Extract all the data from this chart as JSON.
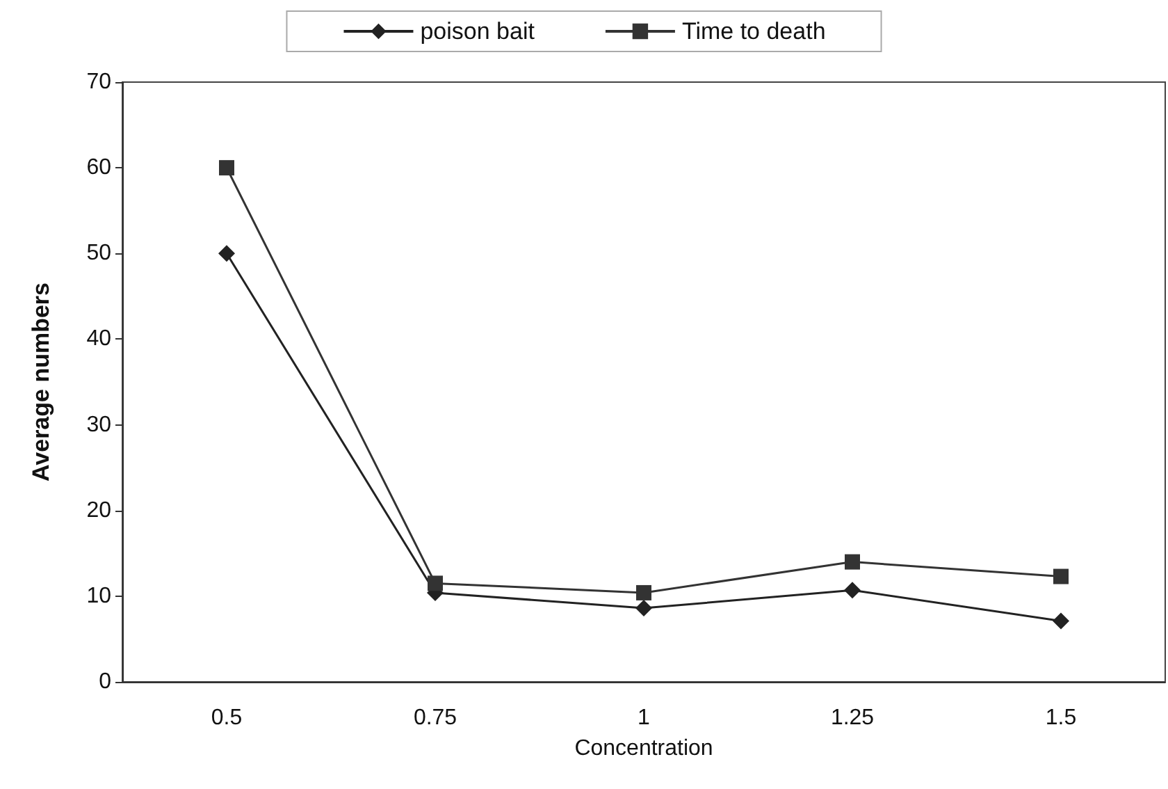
{
  "chart_data": {
    "type": "line",
    "xlabel": "Concentration",
    "ylabel": "Average numbers",
    "categories": [
      "0.5",
      "0.75",
      "1",
      "1.25",
      "1.5"
    ],
    "series": [
      {
        "name": "poison bait",
        "color": "#222222",
        "marker": "diamond",
        "values": [
          50,
          10.4,
          8.6,
          10.7,
          7.1
        ]
      },
      {
        "name": "Time to death",
        "color": "#333333",
        "marker": "square",
        "values": [
          60,
          11.5,
          10.4,
          14,
          12.3
        ]
      }
    ],
    "ylim": [
      0,
      70
    ],
    "yticks": [
      0,
      10,
      20,
      30,
      40,
      50,
      60,
      70
    ],
    "grid": false,
    "legend": "top",
    "line_style": "solid"
  }
}
